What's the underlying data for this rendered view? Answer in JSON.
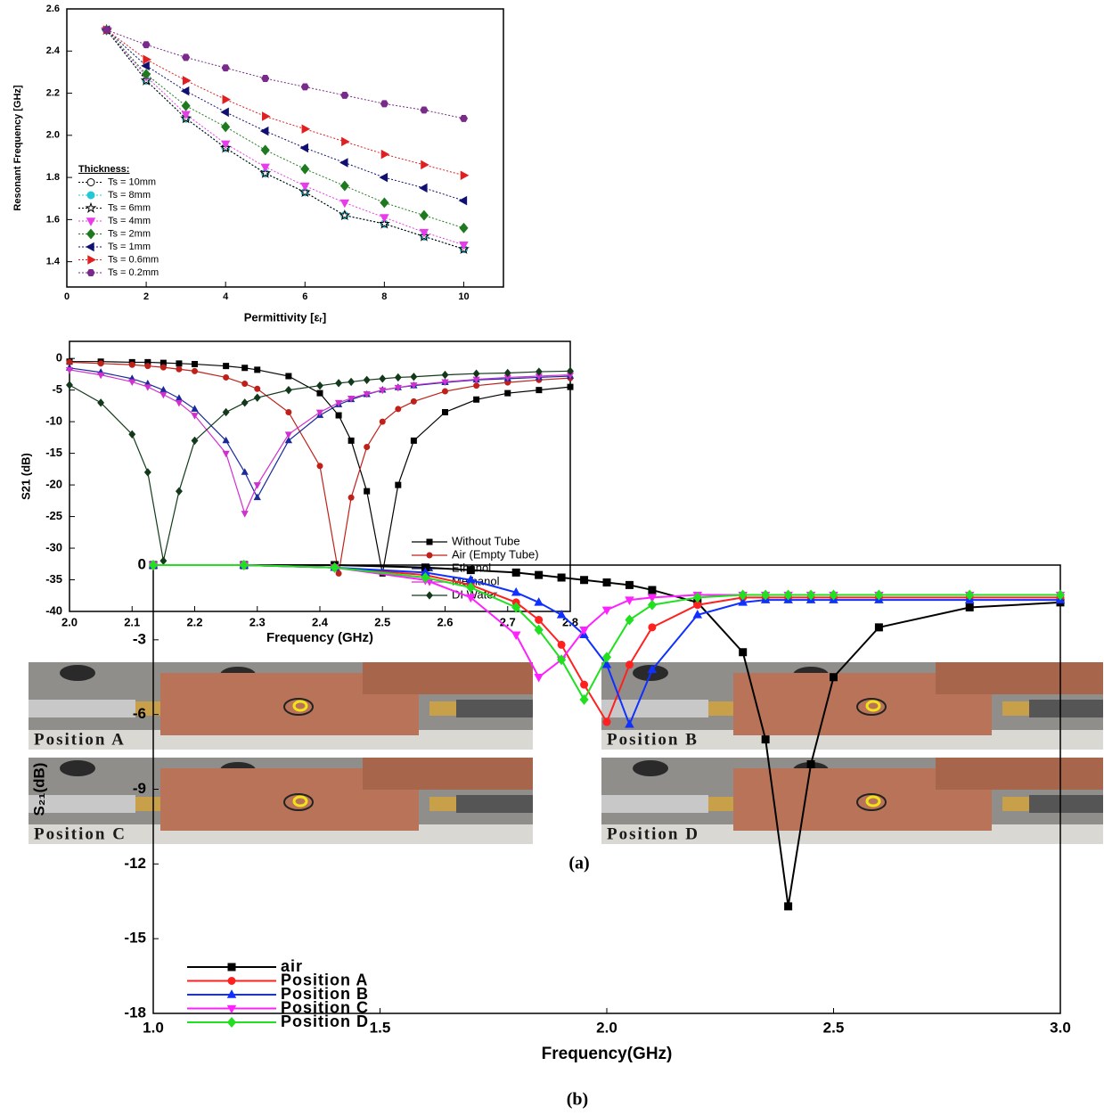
{
  "chart_data": [
    {
      "type": "line",
      "x_label": "Permittivity [εᵣ]",
      "y_label": "Resonant Frequency [GHz]",
      "x": [
        1,
        2,
        3,
        4,
        5,
        6,
        7,
        8,
        9,
        10
      ],
      "xlim": [
        0,
        11
      ],
      "ylim": [
        1.28,
        2.6
      ],
      "xticks": [
        0,
        2,
        4,
        6,
        8,
        10
      ],
      "yticks": [
        1.4,
        1.6,
        1.8,
        {
          "value": 2,
          "label": "2.0"
        },
        2.2,
        2.4,
        2.6
      ],
      "line_style": "dotted",
      "legend": "lower left",
      "legend_title": "Thickness:",
      "series": [
        {
          "name": "Ts = 10mm",
          "color": "#000000",
          "marker": "open-circle",
          "values": [
            2.5,
            2.26,
            2.08,
            1.94,
            1.82,
            1.73,
            1.62,
            1.58,
            1.52,
            1.46
          ]
        },
        {
          "name": "Ts = 8mm",
          "color": "#22c8d8",
          "marker": "circle",
          "values": [
            2.5,
            2.26,
            2.08,
            1.94,
            1.82,
            1.73,
            1.62,
            1.58,
            1.52,
            1.46
          ]
        },
        {
          "name": "Ts = 6mm",
          "color": "#000000",
          "marker": "open-star",
          "values": [
            2.5,
            2.26,
            2.08,
            1.94,
            1.82,
            1.73,
            1.62,
            1.58,
            1.52,
            1.46
          ]
        },
        {
          "name": "Ts = 4mm",
          "color": "#e83ce8",
          "marker": "triangle-down",
          "values": [
            2.5,
            2.28,
            2.1,
            1.96,
            1.85,
            1.76,
            1.68,
            1.61,
            1.54,
            1.48
          ]
        },
        {
          "name": "Ts = 2mm",
          "color": "#1f7a1f",
          "marker": "diamond",
          "values": [
            2.5,
            2.29,
            2.14,
            2.04,
            1.93,
            1.84,
            1.76,
            1.68,
            1.62,
            1.56
          ]
        },
        {
          "name": "Ts = 1mm",
          "color": "#101070",
          "marker": "triangle-left",
          "values": [
            2.5,
            2.33,
            2.21,
            2.11,
            2.02,
            1.94,
            1.87,
            1.8,
            1.75,
            1.69
          ]
        },
        {
          "name": "Ts = 0.6mm",
          "color": "#e02020",
          "marker": "triangle-right",
          "values": [
            2.5,
            2.36,
            2.26,
            2.17,
            2.09,
            2.03,
            1.97,
            1.91,
            1.86,
            1.81
          ]
        },
        {
          "name": "Ts = 0.2mm",
          "color": "#7a2a8a",
          "marker": "hexagon",
          "values": [
            2.5,
            2.43,
            2.37,
            2.32,
            2.27,
            2.23,
            2.19,
            2.15,
            2.12,
            2.08
          ]
        }
      ]
    },
    {
      "type": "line",
      "x_label": "Frequency (GHz)",
      "y_label": "S21 (dB)",
      "x": [
        2.0,
        2.05,
        2.1,
        2.125,
        2.15,
        2.175,
        2.2,
        2.25,
        2.28,
        2.3,
        2.35,
        2.4,
        2.43,
        2.45,
        2.475,
        2.5,
        2.525,
        2.55,
        2.6,
        2.65,
        2.7,
        2.75,
        2.8
      ],
      "xlim": [
        2,
        2.8
      ],
      "ylim": [
        -40,
        2.7
      ],
      "xticks": [
        {
          "value": 2,
          "label": "2.0"
        },
        2.1,
        2.2,
        2.3,
        2.4,
        2.5,
        2.6,
        2.7,
        2.8
      ],
      "yticks": [
        0,
        -5,
        -10,
        -15,
        -20,
        -25,
        -30,
        -35,
        -40
      ],
      "line_style": "solid",
      "legend": "lower right",
      "series": [
        {
          "name": "Without Tube",
          "color": "#000000",
          "marker": "square",
          "values": [
            -0.5,
            -0.5,
            -0.6,
            -0.6,
            -0.7,
            -0.8,
            -0.9,
            -1.2,
            -1.5,
            -1.8,
            -2.8,
            -5.5,
            -9,
            -13,
            -21,
            -34,
            -20,
            -13,
            -8.5,
            -6.5,
            -5.5,
            -5,
            -4.5
          ]
        },
        {
          "name": "Air (Empty Tube)",
          "color": "#c0201a",
          "marker": "circle",
          "values": [
            -0.6,
            -0.8,
            -1,
            -1.2,
            -1.4,
            -1.7,
            -2,
            -3,
            -4,
            -4.8,
            -8.5,
            -17,
            -34,
            -22,
            -14,
            -10,
            -8,
            -6.8,
            -5.2,
            -4.3,
            -3.8,
            -3.4,
            -3.1
          ]
        },
        {
          "name": "Ethanol",
          "color": "#1a2a9a",
          "marker": "triangle-up",
          "values": [
            -1.5,
            -2.2,
            -3.2,
            -4,
            -5,
            -6.3,
            -8,
            -13,
            -18,
            -22,
            -13,
            -9,
            -7.3,
            -6.5,
            -5.7,
            -5,
            -4.6,
            -4.3,
            -3.8,
            -3.4,
            -3.2,
            -3,
            -2.8
          ]
        },
        {
          "name": "Methanol",
          "color": "#d030d0",
          "marker": "triangle-down",
          "values": [
            -1.8,
            -2.6,
            -3.7,
            -4.5,
            -5.7,
            -7,
            -9,
            -15,
            -24.5,
            -20,
            -12,
            -8.5,
            -7,
            -6.3,
            -5.6,
            -5,
            -4.6,
            -4.2,
            -3.7,
            -3.3,
            -3,
            -2.8,
            -2.6
          ]
        },
        {
          "name": "DI Water",
          "color": "#123a1a",
          "marker": "diamond",
          "values": [
            -4.2,
            -7,
            -12,
            -18,
            -32,
            -21,
            -13,
            -8.5,
            -7,
            -6.2,
            -5,
            -4.3,
            -3.9,
            -3.7,
            -3.4,
            -3.2,
            -3,
            -2.9,
            -2.6,
            -2.4,
            -2.3,
            -2.1,
            -2
          ]
        }
      ]
    },
    {
      "type": "line",
      "x_label": "Frequency(GHz)",
      "y_label": "S₂₁(dB)",
      "x": [
        1.0,
        1.2,
        1.4,
        1.6,
        1.7,
        1.8,
        1.85,
        1.9,
        1.95,
        2.0,
        2.05,
        2.1,
        2.2,
        2.3,
        2.35,
        2.4,
        2.45,
        2.5,
        2.6,
        2.8,
        3.0
      ],
      "xlim": [
        1,
        3
      ],
      "ylim": [
        -18,
        0
      ],
      "xticks": [
        {
          "value": 1,
          "label": "1.0"
        },
        1.5,
        {
          "value": 2,
          "label": "2.0"
        },
        2.5,
        {
          "value": 3,
          "label": "3.0"
        }
      ],
      "yticks": [
        0,
        -3,
        -6,
        -9,
        -12,
        -15,
        -18
      ],
      "line_style": "solid",
      "legend": "lower left",
      "series": [
        {
          "name": "air",
          "color": "#000000",
          "marker": "square",
          "values": [
            0,
            0,
            0,
            -0.1,
            -0.2,
            -0.3,
            -0.4,
            -0.5,
            -0.6,
            -0.7,
            -0.8,
            -1,
            -1.5,
            -3.5,
            -7,
            -13.7,
            -8,
            -4.5,
            -2.5,
            -1.7,
            -1.5
          ]
        },
        {
          "name": "Position A",
          "color": "#ff2020",
          "marker": "circle",
          "values": [
            0,
            0,
            -0.1,
            -0.4,
            -0.8,
            -1.5,
            -2.2,
            -3.2,
            -4.8,
            -6.3,
            -4,
            -2.5,
            -1.6,
            -1.3,
            -1.3,
            -1.3,
            -1.3,
            -1.3,
            -1.3,
            -1.3,
            -1.3
          ]
        },
        {
          "name": "Position B",
          "color": "#1030ff",
          "marker": "triangle-up",
          "values": [
            0,
            0,
            -0.1,
            -0.3,
            -0.6,
            -1.1,
            -1.5,
            -2,
            -2.8,
            -4,
            -6.4,
            -4.2,
            -2,
            -1.5,
            -1.4,
            -1.4,
            -1.4,
            -1.4,
            -1.4,
            -1.4,
            -1.4
          ]
        },
        {
          "name": "Position C",
          "color": "#ff20ff",
          "marker": "triangle-down",
          "values": [
            0,
            0,
            -0.1,
            -0.6,
            -1.3,
            -2.8,
            -4.5,
            -3.8,
            -2.6,
            -1.8,
            -1.4,
            -1.3,
            -1.2,
            -1.2,
            -1.2,
            -1.2,
            -1.2,
            -1.2,
            -1.2,
            -1.2,
            -1.2
          ]
        },
        {
          "name": "Position D",
          "color": "#20e020",
          "marker": "diamond",
          "values": [
            0,
            0,
            -0.1,
            -0.5,
            -0.9,
            -1.7,
            -2.6,
            -3.8,
            -5.4,
            -3.7,
            -2.2,
            -1.6,
            -1.3,
            -1.2,
            -1.2,
            -1.2,
            -1.2,
            -1.2,
            -1.2,
            -1.2,
            -1.2
          ]
        }
      ]
    }
  ],
  "figure": {
    "photos": [
      "Position A",
      "Position B",
      "Position C",
      "Position D"
    ],
    "caption_a": "(a)",
    "caption_b": "(b)"
  }
}
